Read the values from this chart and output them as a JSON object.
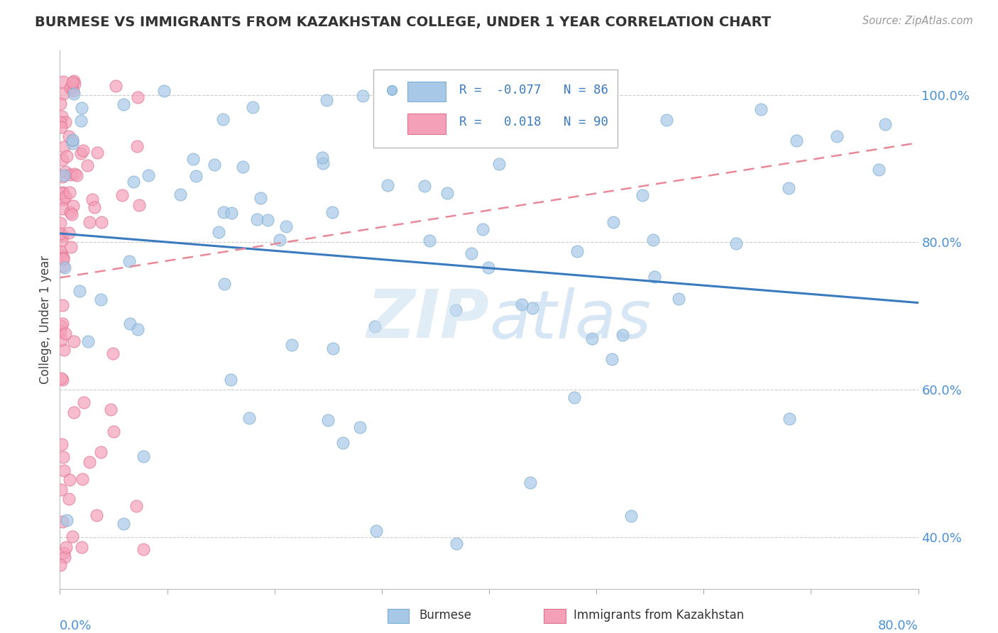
{
  "title": "BURMESE VS IMMIGRANTS FROM KAZAKHSTAN COLLEGE, UNDER 1 YEAR CORRELATION CHART",
  "source": "Source: ZipAtlas.com",
  "ylabel": "College, Under 1 year",
  "ytick_vals": [
    0.4,
    0.6,
    0.8,
    1.0
  ],
  "xlim": [
    0.0,
    0.8
  ],
  "ylim": [
    0.33,
    1.06
  ],
  "blue_R": -0.077,
  "blue_N": 86,
  "pink_R": 0.018,
  "pink_N": 90,
  "blue_color": "#a8c8e8",
  "pink_color": "#f4a0b8",
  "blue_edge_color": "#7aaed0",
  "pink_edge_color": "#e07090",
  "blue_line_color": "#3a7abf",
  "pink_line_color": "#e88898",
  "legend_label_blue": "Burmese",
  "legend_label_pink": "Immigrants from Kazakhstan",
  "watermark_ZIP": "ZIP",
  "watermark_atlas": "atlas",
  "background_color": "#ffffff",
  "grid_color": "#cccccc",
  "blue_line_y0": 0.812,
  "blue_line_y1": 0.718,
  "pink_line_y0": 0.752,
  "pink_line_y1": 0.935
}
